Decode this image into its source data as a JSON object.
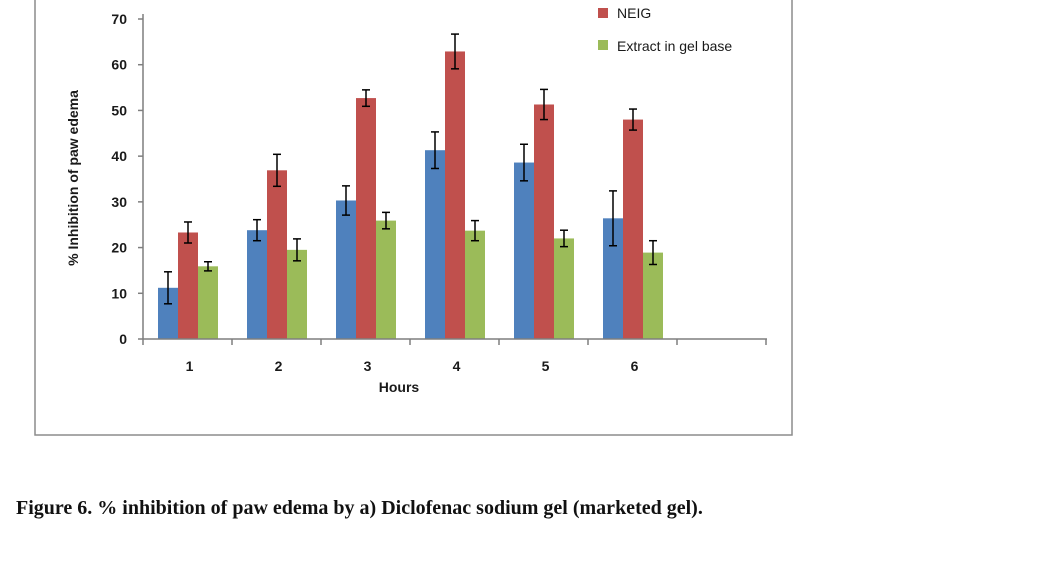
{
  "caption": "Figure 6. % inhibition of paw edema by a) Diclofenac sodium gel (marketed gel).",
  "chart_data": {
    "type": "bar",
    "xlabel": "Hours",
    "ylabel": "% Inhibition of paw edema",
    "ylim": [
      0,
      70
    ],
    "yticks": [
      0,
      10,
      20,
      30,
      40,
      50,
      60,
      70
    ],
    "categories": [
      "1",
      "2",
      "3",
      "4",
      "5",
      "6"
    ],
    "legend_position": "top-right",
    "series": [
      {
        "name": "",
        "color": "#4f81bd",
        "values": [
          11.2,
          23.8,
          30.3,
          41.3,
          38.6,
          26.4
        ],
        "errors": [
          3.5,
          2.3,
          3.2,
          4.0,
          4.0,
          6.0
        ]
      },
      {
        "name": "NEIG",
        "color": "#c0504d",
        "values": [
          23.3,
          36.9,
          52.7,
          62.9,
          51.3,
          48.0
        ],
        "errors": [
          2.3,
          3.5,
          1.8,
          3.8,
          3.3,
          2.3
        ]
      },
      {
        "name": "Extract in gel base",
        "color": "#9bbb59",
        "values": [
          15.9,
          19.5,
          25.9,
          23.7,
          22.0,
          18.9
        ],
        "errors": [
          1.0,
          2.4,
          1.8,
          2.2,
          1.8,
          2.6
        ]
      }
    ]
  }
}
